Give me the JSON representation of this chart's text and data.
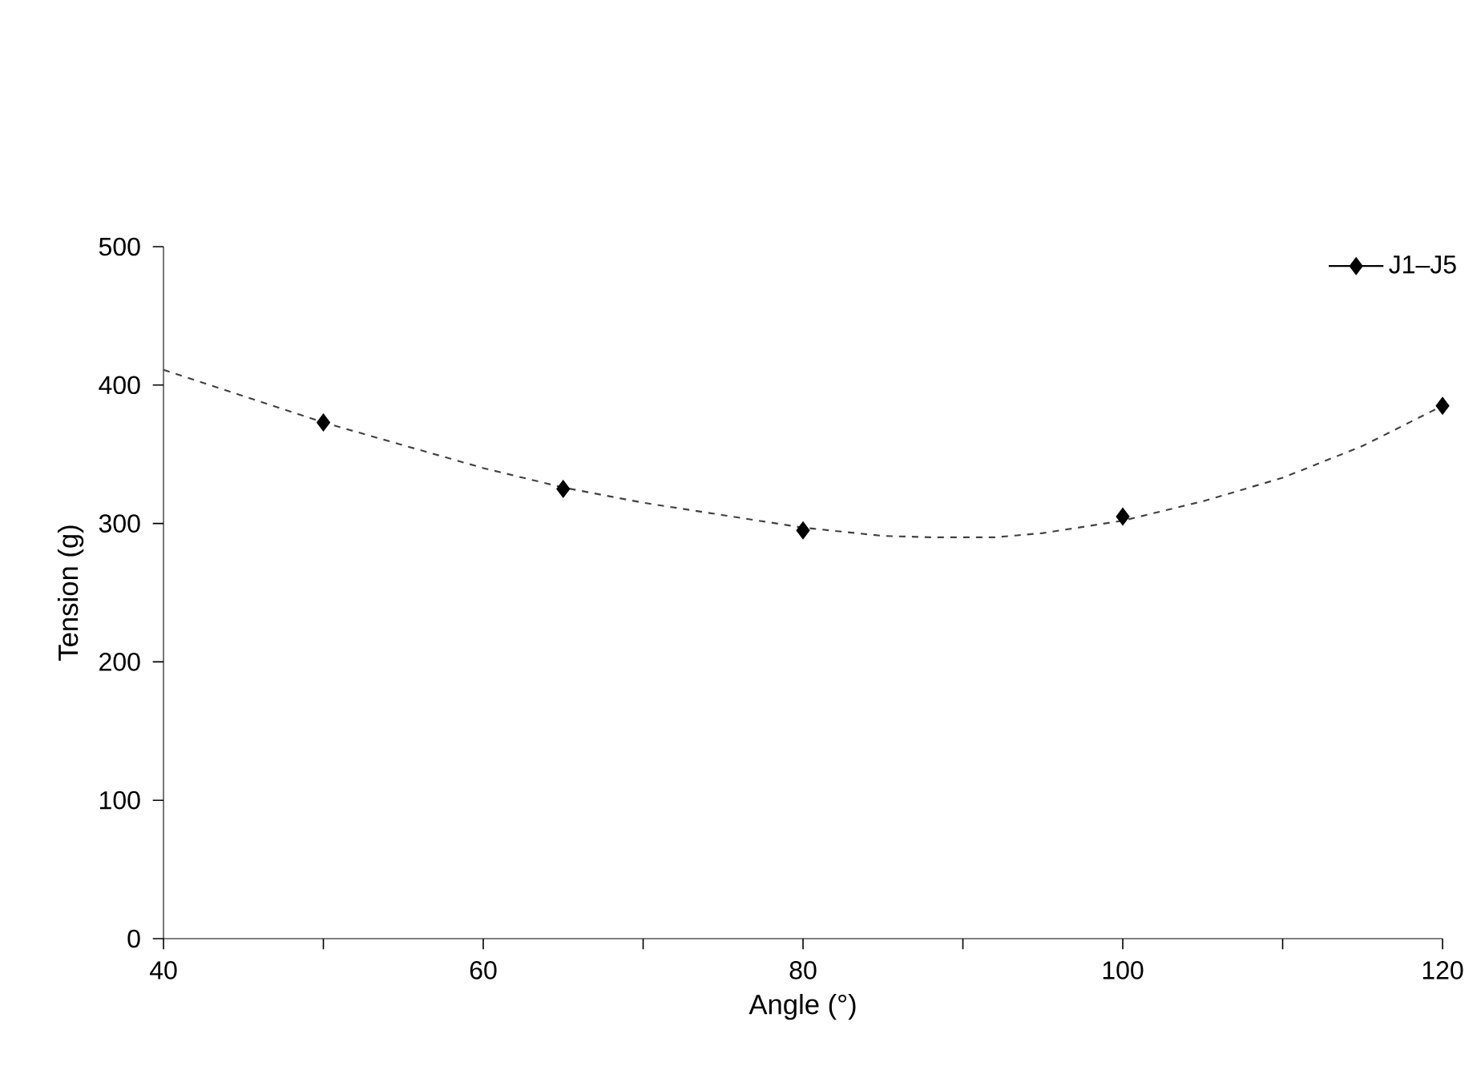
{
  "chart_data": {
    "type": "scatter",
    "xlabel": "Angle (°)",
    "ylabel": "Tension (g)",
    "xlim": [
      40,
      120
    ],
    "ylim": [
      0,
      500
    ],
    "xticks": [
      40,
      {
        "value": 50,
        "label": null
      },
      60,
      {
        "value": 70,
        "label": null
      },
      80,
      {
        "value": 90,
        "label": null
      },
      100,
      {
        "value": 110,
        "label": null
      },
      120
    ],
    "yticks": [
      0,
      100,
      200,
      300,
      400,
      500
    ],
    "grid": false,
    "legend": "top right",
    "series": [
      {
        "name": "J1–J5",
        "marker": "diamond",
        "color": "#000000",
        "x": [
          50,
          65,
          80,
          100,
          120
        ],
        "values": [
          373,
          325,
          295,
          305,
          385
        ]
      },
      {
        "type": "line",
        "line_style": "dashed",
        "marker": "none",
        "color": "#404040",
        "x": [
          40,
          50,
          60,
          65,
          70,
          75,
          80,
          85,
          88,
          92,
          95,
          100,
          105,
          110,
          115,
          120
        ],
        "values": [
          411,
          373,
          340,
          326,
          315,
          306,
          297,
          291,
          290,
          290,
          293,
          302,
          316,
          333,
          356,
          385
        ]
      }
    ]
  }
}
